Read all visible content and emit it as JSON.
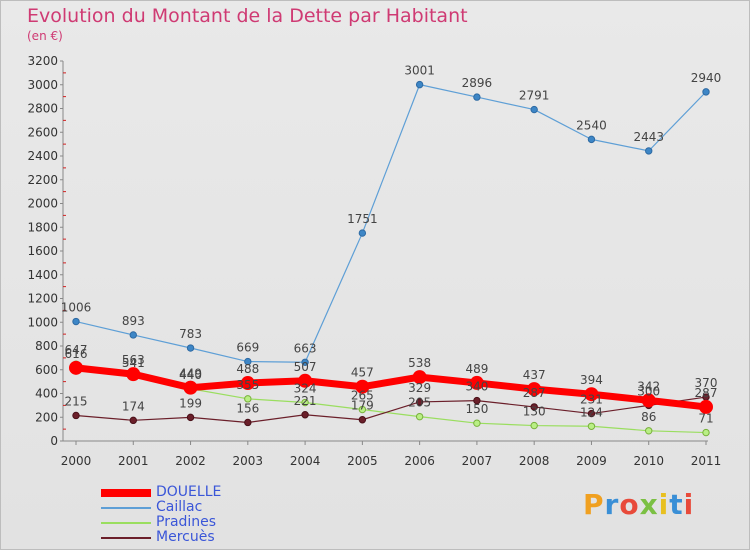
{
  "header": {
    "title": "Evolution du Montant de la Dette par Habitant",
    "subtitle": "(en €)"
  },
  "logo": {
    "text": "Proxiti"
  },
  "chart_data": {
    "type": "line",
    "title": "Evolution du Montant de la Dette par Habitant",
    "subtitle": "(en €)",
    "x": [
      "2000",
      "2001",
      "2002",
      "2003",
      "2004",
      "2005",
      "2006",
      "2007",
      "2008",
      "2009",
      "2010",
      "2011"
    ],
    "ylim": [
      0,
      3200
    ],
    "yticks": [
      0,
      200,
      400,
      600,
      800,
      1000,
      1200,
      1400,
      1600,
      1800,
      2000,
      2200,
      2400,
      2600,
      2800,
      3000,
      3200
    ],
    "grid": false,
    "legend_position": "bottom-left",
    "series": [
      {
        "name": "DOUELLE",
        "color": "#ff0000",
        "values": [
          616,
          563,
          449,
          488,
          507,
          457,
          538,
          489,
          437,
          394,
          342,
          287
        ]
      },
      {
        "name": "Caillac",
        "color": "#5e9fd6",
        "values": [
          1006,
          893,
          783,
          669,
          663,
          1751,
          3001,
          2896,
          2791,
          2540,
          2443,
          2940
        ]
      },
      {
        "name": "Pradines",
        "color": "#9ade5f",
        "values": [
          647,
          541,
          440,
          355,
          324,
          265,
          205,
          150,
          130,
          124,
          86,
          71
        ]
      },
      {
        "name": "Mercuès",
        "color": "#6b1f2a",
        "values": [
          215,
          174,
          199,
          156,
          221,
          179,
          329,
          340,
          287,
          231,
          300,
          370
        ]
      }
    ]
  }
}
